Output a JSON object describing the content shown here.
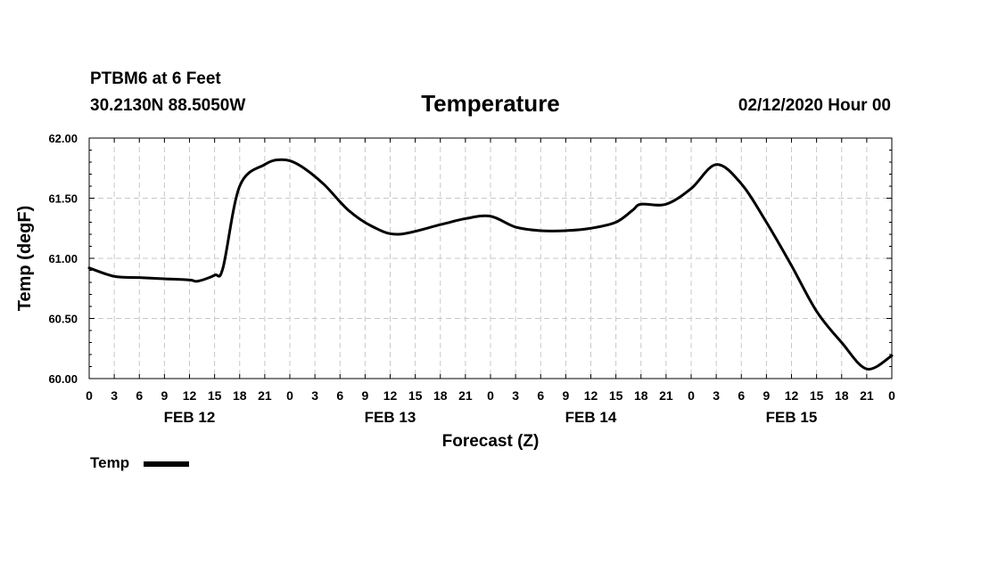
{
  "header": {
    "station": "PTBM6 at 6 Feet",
    "coords": "30.2130N 88.5050W",
    "title": "Temperature",
    "datetime": "02/12/2020 Hour 00"
  },
  "legend": {
    "label": "Temp"
  },
  "chart_data": {
    "type": "line",
    "title": "Temperature",
    "xlabel": "Forecast (Z)",
    "ylabel": "Temp (degF)",
    "ylim": [
      60.0,
      62.0
    ],
    "y_ticks": [
      "60.00",
      "60.50",
      "61.00",
      "61.50",
      "62.00"
    ],
    "x_tick_labels": [
      "0",
      "3",
      "6",
      "9",
      "12",
      "15",
      "18",
      "21",
      "0",
      "3",
      "6",
      "9",
      "12",
      "15",
      "18",
      "21",
      "0",
      "3",
      "6",
      "9",
      "12",
      "15",
      "18",
      "21",
      "0",
      "3",
      "6",
      "9",
      "12",
      "15",
      "18",
      "21",
      "0"
    ],
    "day_labels": [
      "FEB 12",
      "FEB 13",
      "FEB 14",
      "FEB 15"
    ],
    "grid": true,
    "legend_position": "bottom-left",
    "series": [
      {
        "name": "Temp",
        "color": "#000000",
        "x_hours": [
          0,
          3,
          6,
          9,
          12,
          13,
          15,
          16,
          18,
          21,
          23,
          25,
          28,
          31,
          34,
          37,
          42,
          45,
          48,
          51,
          54,
          57,
          60,
          63,
          65,
          66,
          69,
          72,
          75,
          78,
          81,
          84,
          87,
          90,
          93,
          96
        ],
        "values": [
          60.92,
          60.85,
          60.84,
          60.83,
          60.82,
          60.81,
          60.86,
          60.92,
          61.6,
          61.78,
          61.82,
          61.78,
          61.62,
          61.4,
          61.26,
          61.2,
          61.28,
          61.33,
          61.35,
          61.26,
          61.23,
          61.23,
          61.25,
          61.3,
          61.4,
          61.45,
          61.45,
          61.58,
          61.78,
          61.62,
          61.3,
          60.94,
          60.56,
          60.3,
          60.08,
          60.19
        ]
      }
    ]
  }
}
